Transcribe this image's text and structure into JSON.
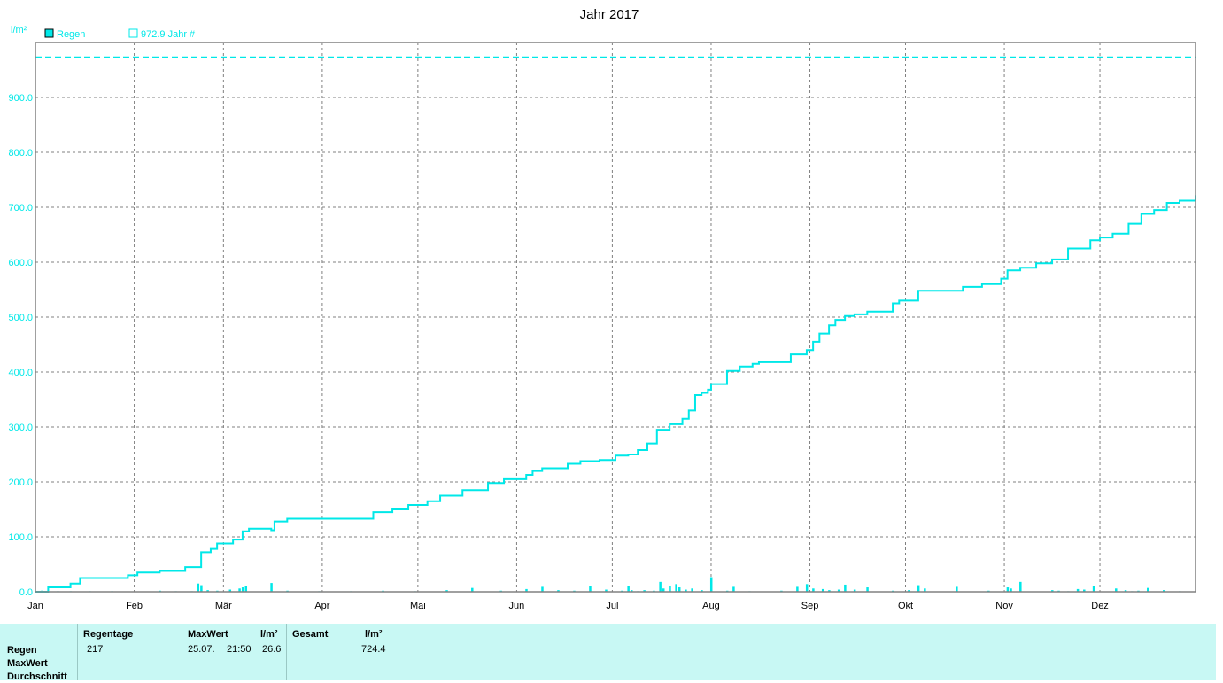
{
  "colors": {
    "rain": "#00e8e8",
    "grid": "#808080",
    "axis_text": "#00e8e8",
    "footer_bg": "#c8f8f4"
  },
  "chart_data": {
    "type": "line",
    "title": "Jahr 2017",
    "ylabel": "l/m²",
    "ylim": [
      0,
      1000
    ],
    "y_ticks": [
      "0.0",
      "100.0",
      "200.0",
      "300.0",
      "400.0",
      "500.0",
      "600.0",
      "700.0",
      "800.0",
      "900.0"
    ],
    "x_ticks": [
      "Jan",
      "Feb",
      "Mär",
      "Apr",
      "Mai",
      "Jun",
      "Jul",
      "Aug",
      "Sep",
      "Okt",
      "Nov",
      "Dez"
    ],
    "legend": {
      "regen": "Regen",
      "reference": "972.9 Jahr #"
    },
    "reference_line": 972.9,
    "series": [
      {
        "name": "Regen",
        "kind": "cumulative-line",
        "x": [
          1,
          5,
          12,
          15,
          30,
          33,
          40,
          48,
          53,
          56,
          58,
          63,
          66,
          68,
          75,
          76,
          80,
          105,
          107,
          113,
          118,
          124,
          128,
          135,
          143,
          148,
          155,
          157,
          160,
          168,
          172,
          178,
          183,
          187,
          190,
          193,
          196,
          200,
          204,
          206,
          208,
          210,
          212,
          213,
          218,
          222,
          226,
          228,
          233,
          238,
          243,
          245,
          247,
          250,
          252,
          255,
          258,
          262,
          270,
          272,
          278,
          284,
          292,
          298,
          304,
          306,
          310,
          315,
          320,
          325,
          332,
          335,
          339,
          344,
          348,
          352,
          356,
          360,
          365
        ],
        "y": [
          0,
          8,
          15,
          25,
          30,
          35,
          38,
          45,
          72,
          78,
          88,
          95,
          110,
          115,
          112,
          128,
          133,
          133,
          145,
          150,
          158,
          165,
          175,
          185,
          198,
          205,
          213,
          220,
          225,
          233,
          238,
          240,
          248,
          250,
          258,
          270,
          295,
          305,
          315,
          330,
          358,
          362,
          368,
          378,
          402,
          410,
          415,
          418,
          418,
          432,
          440,
          455,
          470,
          485,
          495,
          502,
          505,
          510,
          525,
          530,
          548,
          548,
          555,
          560,
          570,
          585,
          590,
          598,
          605,
          625,
          640,
          645,
          652,
          670,
          688,
          695,
          708,
          712,
          722
        ]
      },
      {
        "name": "Regen",
        "kind": "daily-bars",
        "x": [
          3,
          8,
          12,
          18,
          25,
          40,
          45,
          50,
          52,
          53,
          55,
          58,
          62,
          65,
          66,
          67,
          75,
          80,
          90,
          100,
          110,
          120,
          130,
          138,
          147,
          155,
          160,
          165,
          170,
          175,
          180,
          185,
          187,
          188,
          190,
          192,
          195,
          197,
          198,
          200,
          202,
          203,
          205,
          207,
          210,
          213,
          218,
          220,
          225,
          235,
          240,
          243,
          245,
          248,
          250,
          253,
          255,
          258,
          262,
          270,
          275,
          278,
          280,
          290,
          300,
          306,
          307,
          310,
          320,
          322,
          325,
          328,
          330,
          333,
          340,
          343,
          345,
          347,
          350,
          355,
          360
        ],
        "y": [
          2,
          1,
          1,
          1,
          1,
          2,
          1,
          1,
          15,
          12,
          3,
          2,
          4,
          6,
          8,
          10,
          16,
          2,
          1,
          1,
          2,
          1,
          3,
          7,
          2,
          5,
          9,
          3,
          2,
          10,
          4,
          2,
          11,
          3,
          1,
          3,
          2,
          18,
          6,
          10,
          14,
          8,
          4,
          6,
          3,
          26.6,
          2,
          9,
          1,
          2,
          9,
          14,
          6,
          5,
          3,
          4,
          13,
          4,
          8,
          2,
          3,
          12,
          6,
          9,
          2,
          8,
          6,
          18,
          3,
          2,
          1,
          5,
          4,
          11,
          6,
          3,
          1,
          2,
          7,
          3,
          1
        ],
        "max_value": 26.6
      }
    ]
  },
  "footer": {
    "rows": [
      "Regen",
      "MaxWert",
      "Durchschnitt"
    ],
    "regentage_header": "Regentage",
    "regentage_value": "217",
    "maxwert_header": "MaxWert",
    "maxwert_unit": "l/m²",
    "maxwert_date": "25.07.",
    "maxwert_time": "21:50",
    "maxwert_value": "26.6",
    "gesamt_header": "Gesamt",
    "gesamt_unit": "l/m²",
    "gesamt_value": "724.4"
  }
}
